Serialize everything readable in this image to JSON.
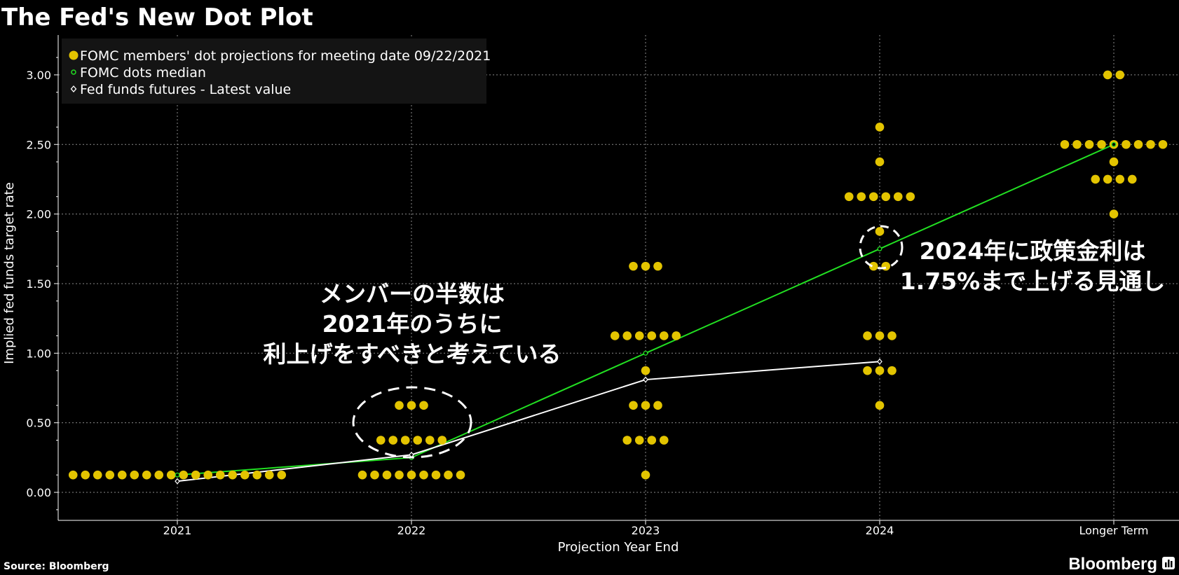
{
  "title": "The Fed's New Dot Plot",
  "source": "Source: Bloomberg",
  "brand": "Bloomberg",
  "colors": {
    "dots": "#e3c400",
    "median": "#22e022",
    "futures": "#ffffff",
    "background": "#000000",
    "grid": "#8a8a8a"
  },
  "chart_data": {
    "type": "scatter",
    "xlabel": "Projection Year End",
    "ylabel": "Implied fed funds target rate",
    "categories": [
      "2021",
      "2022",
      "2023",
      "2024",
      "Longer Term"
    ],
    "ylim": [
      -0.2,
      3.25
    ],
    "yticks": [
      "0.00",
      "0.50",
      "1.00",
      "1.50",
      "2.00",
      "2.50",
      "3.00"
    ],
    "grid": true,
    "legend_position": "top-left",
    "legend": [
      "FOMC members' dot projections for meeting date 09/22/2021",
      "FOMC dots median",
      "Fed funds futures - Latest value"
    ],
    "dots": [
      {
        "category": "2021",
        "levels": [
          {
            "value": 0.125,
            "count": 18
          }
        ]
      },
      {
        "category": "2022",
        "levels": [
          {
            "value": 0.625,
            "count": 3
          },
          {
            "value": 0.375,
            "count": 6
          },
          {
            "value": 0.125,
            "count": 9
          }
        ]
      },
      {
        "category": "2023",
        "levels": [
          {
            "value": 1.625,
            "count": 3
          },
          {
            "value": 1.125,
            "count": 6
          },
          {
            "value": 0.875,
            "count": 1
          },
          {
            "value": 0.625,
            "count": 3
          },
          {
            "value": 0.375,
            "count": 4
          },
          {
            "value": 0.125,
            "count": 1
          }
        ]
      },
      {
        "category": "2024",
        "levels": [
          {
            "value": 2.625,
            "count": 1
          },
          {
            "value": 2.375,
            "count": 1
          },
          {
            "value": 2.125,
            "count": 6
          },
          {
            "value": 1.875,
            "count": 1
          },
          {
            "value": 1.625,
            "count": 2
          },
          {
            "value": 1.125,
            "count": 3
          },
          {
            "value": 0.875,
            "count": 3
          },
          {
            "value": 0.625,
            "count": 1
          }
        ]
      },
      {
        "category": "Longer Term",
        "levels": [
          {
            "value": 3.0,
            "count": 2
          },
          {
            "value": 2.5,
            "count": 9
          },
          {
            "value": 2.375,
            "count": 1
          },
          {
            "value": 2.25,
            "count": 4
          },
          {
            "value": 2.0,
            "count": 1
          }
        ]
      }
    ],
    "series": [
      {
        "name": "FOMC dots median",
        "categories": [
          "2021",
          "2022",
          "2023",
          "2024",
          "Longer Term"
        ],
        "values": [
          0.125,
          0.25,
          1.0,
          1.75,
          2.5
        ]
      },
      {
        "name": "Fed funds futures - Latest value",
        "categories": [
          "2021",
          "2022",
          "2023",
          "2024"
        ],
        "values": [
          0.08,
          0.27,
          0.81,
          0.94
        ]
      }
    ]
  },
  "annotations": {
    "left": [
      "メンバーの半数は",
      "2021年のうちに",
      "利上げをすべきと考えている"
    ],
    "right": [
      "2024年に政策金利は",
      "1.75%まで上げる見通し"
    ]
  }
}
